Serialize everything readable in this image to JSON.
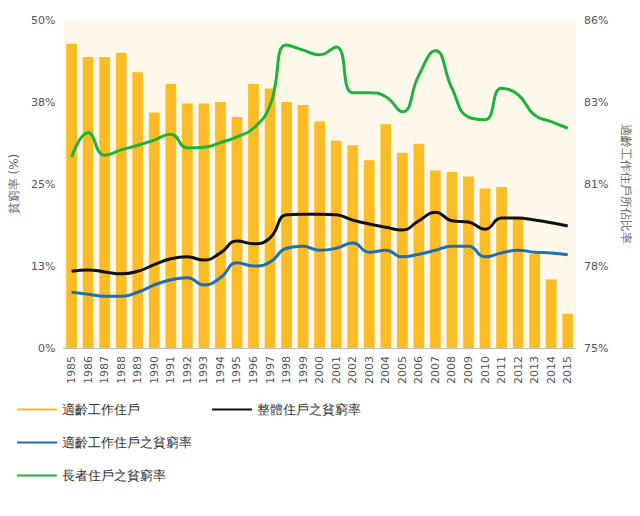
{
  "chart_data": {
    "type": "bar",
    "categories": [
      "1985",
      "1986",
      "1987",
      "1988",
      "1989",
      "1990",
      "1991",
      "1992",
      "1993",
      "1994",
      "1995",
      "1996",
      "1997",
      "1998",
      "1999",
      "2000",
      "2001",
      "2002",
      "2003",
      "2004",
      "2005",
      "2006",
      "2007",
      "2008",
      "2009",
      "2010",
      "2011",
      "2012",
      "2013",
      "2014",
      "2015"
    ],
    "y_label": "貧窮率 (%)",
    "y2_label": "適齡工作住戶所佔比率",
    "ylim": [
      0,
      50
    ],
    "yticks": [
      {
        "value": 0,
        "label": "0%"
      },
      {
        "value": 12.5,
        "label": "13%"
      },
      {
        "value": 25,
        "label": "25%"
      },
      {
        "value": 37.5,
        "label": "38%"
      },
      {
        "value": 50,
        "label": "50%"
      }
    ],
    "y2lim": [
      75,
      86
    ],
    "y2ticks": [
      {
        "value": 75,
        "label": "75%"
      },
      {
        "value": 77.75,
        "label": "78%"
      },
      {
        "value": 80.5,
        "label": "81%"
      },
      {
        "value": 83.25,
        "label": "83%"
      },
      {
        "value": 86,
        "label": "86%"
      }
    ],
    "grid": false,
    "legend": "bottom",
    "series": [
      {
        "name": "適齡工作住戶",
        "type": "bar",
        "axis": "y2",
        "color": "#fbbc25",
        "values": [
          85.2,
          84.76,
          84.76,
          84.9,
          84.25,
          82.9,
          83.85,
          83.2,
          83.2,
          83.25,
          82.75,
          83.85,
          83.7,
          83.25,
          83.15,
          82.6,
          81.95,
          81.8,
          81.3,
          82.5,
          81.55,
          81.85,
          80.95,
          80.9,
          80.75,
          80.35,
          80.4,
          79.35,
          78.15,
          77.3,
          76.15
        ]
      },
      {
        "name": "適齡工作住戶之貧窮率",
        "type": "line",
        "color": "#1f6fb2",
        "values": [
          8.5,
          8.2,
          7.9,
          7.9,
          8.5,
          9.6,
          10.4,
          10.7,
          9.6,
          10.7,
          13.0,
          12.5,
          13.1,
          15.2,
          15.5,
          14.9,
          15.2,
          16.0,
          14.6,
          14.9,
          13.9,
          14.3,
          14.9,
          15.5,
          15.5,
          13.9,
          14.5,
          14.9,
          14.6,
          14.5,
          14.2
        ]
      },
      {
        "name": "長者住戶之貧窮率",
        "type": "line",
        "color": "#1db33a",
        "values": [
          29.1,
          32.8,
          29.4,
          30.2,
          30.9,
          31.7,
          32.6,
          30.5,
          30.6,
          31.3,
          32.2,
          33.5,
          37.0,
          46.2,
          45.4,
          44.7,
          45.9,
          38.9,
          38.9,
          38.3,
          36.0,
          41.6,
          45.3,
          39.6,
          35.2,
          34.8,
          39.6,
          38.6,
          35.5,
          34.5,
          33.5
        ]
      },
      {
        "name": "整體住戶之貧窮率",
        "type": "line",
        "color": "#111111",
        "values": [
          11.7,
          11.9,
          11.6,
          11.3,
          11.7,
          12.7,
          13.6,
          13.9,
          13.4,
          14.5,
          16.3,
          15.9,
          16.8,
          20.3,
          20.4,
          20.4,
          20.3,
          19.5,
          18.9,
          18.4,
          18.0,
          19.4,
          20.7,
          19.4,
          19.2,
          18.1,
          19.8,
          19.8,
          19.5,
          19.1,
          18.6
        ]
      }
    ]
  }
}
